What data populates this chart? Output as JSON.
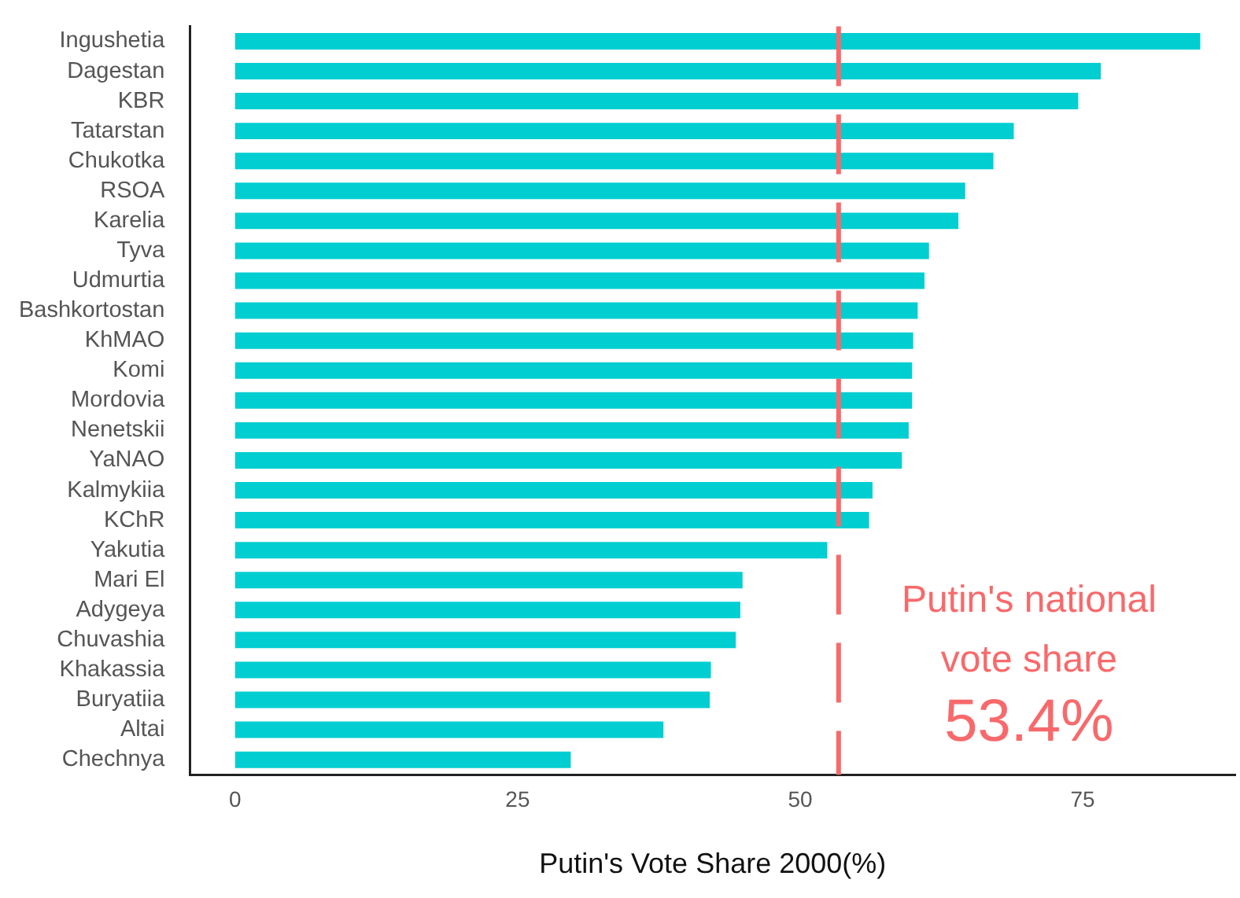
{
  "chart_data": {
    "type": "bar",
    "orientation": "horizontal",
    "xlabel": "Putin's Vote Share 2000(%)",
    "categories": [
      "Ingushetia",
      "Dagestan",
      "KBR",
      "Tatarstan",
      "Chukotka",
      "RSOA",
      "Karelia",
      "Tyva",
      "Udmurtia",
      "Bashkortostan",
      "KhMAO",
      "Komi",
      "Mordovia",
      "Nenetskii",
      "YaNAO",
      "Kalmykiia",
      "KChR",
      "Yakutia",
      "Mari El",
      "Adygeya",
      "Chuvashia",
      "Khakassia",
      "Buryatiia",
      "Altai",
      "Chechnya"
    ],
    "values": [
      85.4,
      76.6,
      74.6,
      68.9,
      67.1,
      64.6,
      64,
      61.4,
      61,
      60.4,
      60,
      59.9,
      59.9,
      59.6,
      59,
      56.4,
      56.1,
      52.4,
      44.9,
      44.7,
      44.3,
      42.1,
      42,
      37.9,
      29.7
    ],
    "color": "#00ced1",
    "xlim": [
      -4,
      88.5
    ],
    "xticks": [
      0,
      25,
      50,
      75
    ],
    "grid": false,
    "ref_lines": [
      {
        "axis": "x",
        "value": 53.4,
        "label": "Putin's national vote share",
        "color": "#f8696b",
        "line_style": "dashed"
      }
    ],
    "annotations": [
      "53.4%"
    ]
  }
}
